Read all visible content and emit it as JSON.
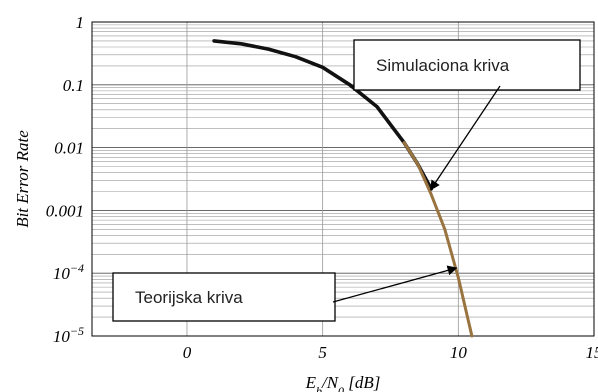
{
  "chart_data": {
    "type": "line",
    "xlabel": "E_b/N_0 [dB]",
    "ylabel": "Bit Error Rate",
    "xlim": [
      -3.5,
      15
    ],
    "ylim": [
      1e-05,
      1
    ],
    "yscale": "log",
    "grid": true,
    "x_ticks": [
      {
        "value": 0,
        "label": "0"
      },
      {
        "value": 5,
        "label": "5"
      },
      {
        "value": 10,
        "label": "10"
      },
      {
        "value": 15,
        "label": "15"
      }
    ],
    "y_ticks": [
      {
        "value": 1,
        "label": "1"
      },
      {
        "value": 0.1,
        "label": "0.1"
      },
      {
        "value": 0.01,
        "label": "0.01"
      },
      {
        "value": 0.001,
        "label": "0.001"
      },
      {
        "value": 0.0001,
        "label": "10^-4"
      },
      {
        "value": 1e-05,
        "label": "10^-5"
      }
    ],
    "series": [
      {
        "name": "Simulaciona kriva",
        "color": "#111111",
        "x": [
          1,
          2,
          3,
          4,
          5,
          6,
          7,
          8,
          8.5,
          9
        ],
        "y": [
          0.5,
          0.45,
          0.37,
          0.28,
          0.19,
          0.1,
          0.045,
          0.012,
          0.0055,
          0.0022
        ]
      },
      {
        "name": "Teorijska kriva",
        "color": "#9a7440",
        "x": [
          8,
          8.5,
          9,
          9.5,
          10,
          10.5
        ],
        "y": [
          0.012,
          0.0055,
          0.0018,
          0.0005,
          8.5e-05,
          1e-05
        ]
      }
    ],
    "annotations": [
      {
        "text": "Simulaciona kriva",
        "points_to": [
          9,
          0.0022
        ]
      },
      {
        "text": "Teorijska kriva",
        "points_to": [
          9.9,
          0.00012
        ]
      }
    ]
  }
}
